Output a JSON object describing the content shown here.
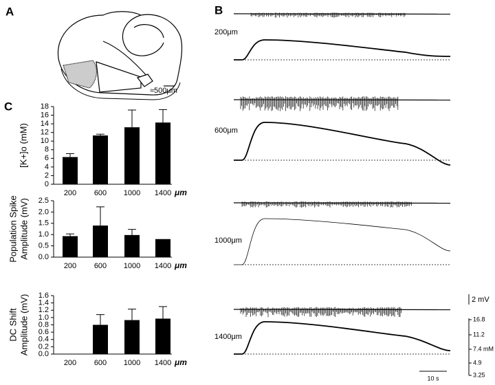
{
  "labels": {
    "a": "A",
    "b": "B",
    "c": "C"
  },
  "diagram_scale": "≈500μm",
  "traces": {
    "depths": [
      "200μm",
      "600μm",
      "1000μm",
      "1400μm"
    ],
    "voltage_scale": "2 mV",
    "k_scale": [
      "16.8",
      "11.2",
      "7.4 mM",
      "4.9",
      "3.25"
    ],
    "time_scale": "10 s"
  },
  "chart_data": [
    {
      "type": "bar",
      "ylabel": "[K+]o (mM)",
      "categories": [
        "200",
        "600",
        "1000",
        "1400"
      ],
      "unit": "μm",
      "values": [
        6.3,
        11.3,
        13.2,
        14.3
      ],
      "errors": [
        0.8,
        0.3,
        4.0,
        3.0
      ],
      "color": "#000000",
      "ylim": [
        0,
        18
      ],
      "yticks": [
        0,
        2,
        4,
        6,
        8,
        10,
        12,
        14,
        16,
        18
      ]
    },
    {
      "type": "bar",
      "ylabel": [
        "Population Spike",
        "Amplitude (mV)"
      ],
      "categories": [
        "200",
        "600",
        "1000",
        "1400"
      ],
      "unit": "μm",
      "values": [
        0.93,
        1.4,
        0.98,
        0.8
      ],
      "errors": [
        0.1,
        0.83,
        0.25,
        null
      ],
      "color": "#000000",
      "ylim": [
        0,
        2.5
      ],
      "yticks": [
        {
          "value": 0,
          "label": "0.0"
        },
        0.5,
        {
          "value": 1,
          "label": "1.0"
        },
        1.5,
        {
          "value": 2,
          "label": "2.0"
        },
        2.5
      ]
    },
    {
      "type": "bar",
      "ylabel": [
        "DC Shift",
        "Amplitude (mV)"
      ],
      "categories": [
        "200",
        "600",
        "1000",
        "1400"
      ],
      "unit": "μm",
      "values": [
        0,
        0.8,
        0.93,
        0.97
      ],
      "errors": [
        null,
        0.28,
        0.3,
        0.33
      ],
      "color": "#000000",
      "ylim": [
        0,
        1.6
      ],
      "yticks": [
        {
          "value": 0,
          "label": "0.0"
        },
        0.2,
        0.4,
        0.6,
        0.8,
        {
          "value": 1,
          "label": "1.0"
        },
        1.2,
        1.4,
        1.6
      ]
    }
  ]
}
